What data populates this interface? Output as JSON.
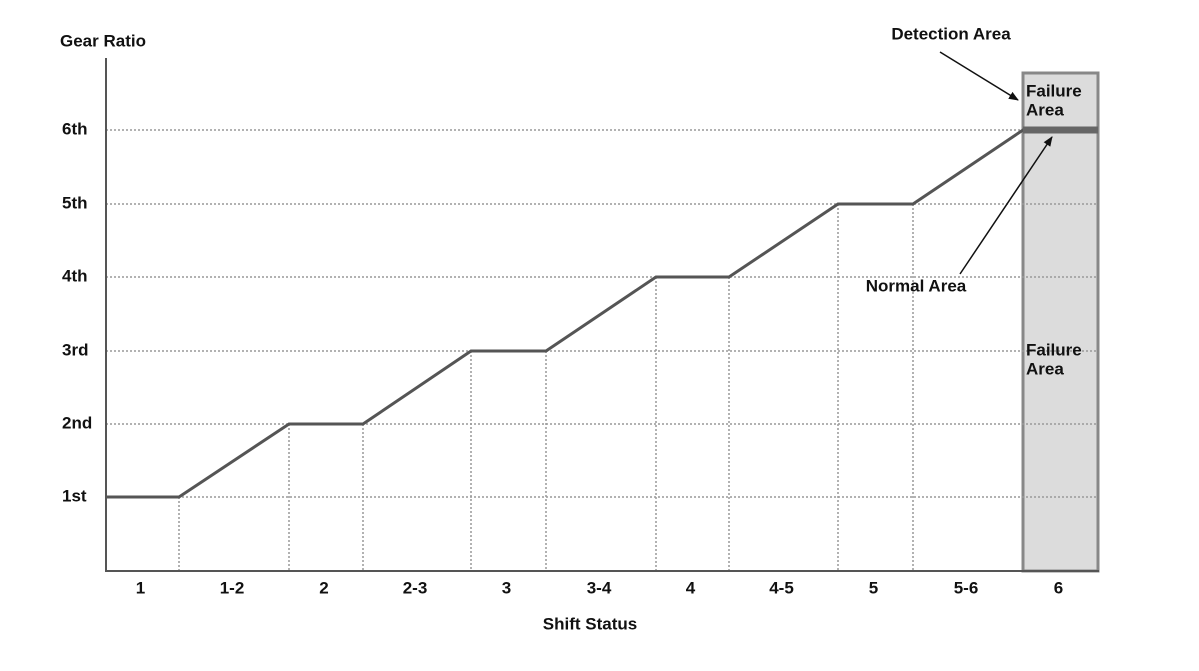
{
  "y_axis": {
    "title": "Gear Ratio",
    "labels": [
      "1st",
      "2nd",
      "3rd",
      "4th",
      "5th",
      "6th"
    ]
  },
  "x_axis": {
    "title": "Shift Status",
    "labels": [
      "1",
      "1-2",
      "2",
      "2-3",
      "3",
      "3-4",
      "4",
      "4-5",
      "5",
      "5-6",
      "6"
    ]
  },
  "annotations": {
    "detection_area": "Detection Area",
    "normal_area": "Normal Area",
    "failure_area_top": [
      "Failure",
      "Area"
    ],
    "failure_area_bottom": [
      "Failure",
      "Area"
    ]
  }
}
